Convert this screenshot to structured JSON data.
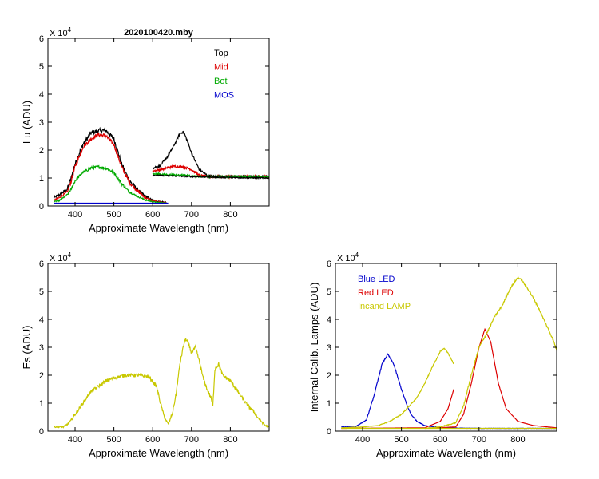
{
  "chart_data": [
    {
      "type": "line",
      "title": "2020100420.mby",
      "xlabel": "Approximate Wavelength (nm)",
      "ylabel": "Lu (ADU)",
      "exponent_label": "X 10",
      "exponent_power": "4",
      "xlim": [
        330,
        900
      ],
      "ylim": [
        0,
        6
      ],
      "xticks": [
        "400",
        "500",
        "600",
        "700",
        "800"
      ],
      "yticks": [
        "0",
        "1",
        "2",
        "3",
        "4",
        "5",
        "6"
      ],
      "legend": [
        "Top",
        "Mid",
        "Bot",
        "MOS"
      ],
      "series": [
        {
          "name": "Top",
          "color": "#000000",
          "noise": 0.08,
          "x": [
            345,
            360,
            380,
            390,
            400,
            420,
            440,
            460,
            480,
            500,
            520,
            540,
            560,
            580,
            600,
            620,
            635
          ],
          "y": [
            0.3,
            0.4,
            0.6,
            1.0,
            1.5,
            2.2,
            2.6,
            2.7,
            2.7,
            2.4,
            1.5,
            0.9,
            0.6,
            0.35,
            0.2,
            0.15,
            0.13
          ]
        },
        {
          "name": "Mid",
          "color": "#dd0000",
          "noise": 0.07,
          "x": [
            345,
            360,
            380,
            390,
            400,
            420,
            440,
            460,
            480,
            500,
            520,
            540,
            560,
            580,
            600,
            620,
            635
          ],
          "y": [
            0.2,
            0.3,
            0.5,
            0.9,
            1.4,
            2.1,
            2.4,
            2.55,
            2.5,
            2.2,
            1.4,
            0.85,
            0.55,
            0.3,
            0.18,
            0.14,
            0.12
          ]
        },
        {
          "name": "Bot",
          "color": "#00aa00",
          "noise": 0.05,
          "x": [
            345,
            360,
            380,
            390,
            400,
            420,
            440,
            460,
            480,
            500,
            520,
            540,
            560,
            580,
            600,
            620,
            635
          ],
          "y": [
            0.15,
            0.2,
            0.4,
            0.6,
            0.9,
            1.2,
            1.35,
            1.4,
            1.35,
            1.2,
            0.8,
            0.5,
            0.35,
            0.22,
            0.15,
            0.12,
            0.11
          ]
        },
        {
          "name": "MOS",
          "color": "#0000cc",
          "noise": 0.0,
          "x": [
            345,
            640
          ],
          "y": [
            0.1,
            0.1
          ]
        },
        {
          "name": "Top",
          "color": "#000000",
          "noise": 0.04,
          "x": [
            600,
            620,
            640,
            660,
            670,
            680,
            690,
            700,
            720,
            740,
            760,
            800,
            900
          ],
          "y": [
            1.35,
            1.45,
            1.8,
            2.3,
            2.6,
            2.65,
            2.3,
            1.9,
            1.3,
            1.1,
            1.05,
            1.05,
            1.05
          ]
        },
        {
          "name": "Mid",
          "color": "#dd0000",
          "noise": 0.04,
          "x": [
            600,
            620,
            640,
            660,
            680,
            700,
            720,
            740,
            800,
            900
          ],
          "y": [
            1.25,
            1.3,
            1.38,
            1.42,
            1.4,
            1.3,
            1.1,
            1.05,
            1.05,
            1.05
          ]
        },
        {
          "name": "Bot",
          "color": "#00aa00",
          "noise": 0.03,
          "x": [
            600,
            640,
            680,
            720,
            800,
            900
          ],
          "y": [
            1.15,
            1.12,
            1.1,
            1.05,
            1.05,
            1.05
          ]
        },
        {
          "name": "Top",
          "color": "#000000",
          "noise": 0.02,
          "x": [
            600,
            700,
            800,
            900
          ],
          "y": [
            1.1,
            1.05,
            1.02,
            1.0
          ]
        }
      ]
    },
    {
      "type": "line",
      "title": "",
      "xlabel": "Approximate Wavelength (nm)",
      "ylabel": "Es (ADU)",
      "exponent_label": "X 10",
      "exponent_power": "4",
      "xlim": [
        330,
        900
      ],
      "ylim": [
        0,
        6
      ],
      "xticks": [
        "400",
        "500",
        "600",
        "700",
        "800"
      ],
      "yticks": [
        "0",
        "1",
        "2",
        "3",
        "4",
        "5",
        "6"
      ],
      "legend": [],
      "series": [
        {
          "name": "Es",
          "color": "#c8c800",
          "noise": 0.06,
          "x": [
            345,
            370,
            385,
            400,
            420,
            440,
            460,
            480,
            500,
            530,
            560,
            590,
            610,
            620,
            630,
            640,
            650,
            660,
            670,
            680,
            685,
            690,
            700,
            710,
            720,
            730,
            740,
            750,
            755,
            760,
            770,
            780,
            800,
            820,
            840,
            860,
            870,
            880,
            890,
            900
          ],
          "y": [
            0.15,
            0.15,
            0.3,
            0.6,
            1.0,
            1.4,
            1.6,
            1.8,
            1.9,
            2.0,
            2.0,
            1.95,
            1.6,
            1.0,
            0.5,
            0.25,
            0.6,
            1.3,
            2.4,
            3.1,
            3.3,
            3.2,
            2.8,
            3.0,
            2.5,
            1.9,
            1.5,
            1.2,
            0.9,
            2.2,
            2.4,
            2.0,
            1.8,
            1.4,
            1.0,
            0.7,
            0.5,
            0.35,
            0.2,
            0.15
          ]
        }
      ]
    },
    {
      "type": "line",
      "title": "",
      "xlabel": "Approximate Wavelength (nm)",
      "ylabel": "Internal Calib. Lamps (ADU)",
      "exponent_label": "X 10",
      "exponent_power": "4",
      "xlim": [
        330,
        900
      ],
      "ylim": [
        0,
        6
      ],
      "xticks": [
        "400",
        "500",
        "600",
        "700",
        "800"
      ],
      "yticks": [
        "0",
        "1",
        "2",
        "3",
        "4",
        "5",
        "6"
      ],
      "legend": [
        "Blue LED",
        "Red LED",
        "Incand LAMP"
      ],
      "series": [
        {
          "name": "Blue LED",
          "color": "#0000cc",
          "noise": 0.02,
          "x": [
            345,
            380,
            410,
            430,
            450,
            465,
            480,
            500,
            515,
            525,
            540,
            560,
            600,
            700,
            800,
            900
          ],
          "y": [
            0.15,
            0.15,
            0.4,
            1.3,
            2.4,
            2.75,
            2.4,
            1.5,
            0.9,
            0.6,
            0.35,
            0.2,
            0.12,
            0.1,
            0.1,
            0.1
          ]
        },
        {
          "name": "Red LED",
          "color": "#dd0000",
          "noise": 0.0,
          "x": [
            345,
            560,
            600,
            620,
            635
          ],
          "y": [
            0.1,
            0.12,
            0.35,
            0.8,
            1.5
          ]
        },
        {
          "name": "Red LED",
          "color": "#dd0000",
          "noise": 0.0,
          "x": [
            560,
            640,
            660,
            680,
            700,
            715,
            730,
            750,
            770,
            800,
            840,
            900
          ],
          "y": [
            0.1,
            0.15,
            0.6,
            1.7,
            3.0,
            3.65,
            3.2,
            1.7,
            0.8,
            0.35,
            0.2,
            0.12
          ]
        },
        {
          "name": "Incand LAMP",
          "color": "#c8c800",
          "noise": 0.02,
          "x": [
            345,
            400,
            440,
            470,
            500,
            520,
            540,
            560,
            580,
            600,
            610,
            620,
            635
          ],
          "y": [
            0.12,
            0.15,
            0.2,
            0.35,
            0.6,
            0.9,
            1.2,
            1.7,
            2.3,
            2.85,
            2.95,
            2.8,
            2.4
          ]
        },
        {
          "name": "Incand LAMP",
          "color": "#c8c800",
          "noise": 0.03,
          "x": [
            560,
            600,
            640,
            660,
            680,
            700,
            720,
            740,
            760,
            780,
            800,
            810,
            830,
            850,
            870,
            890,
            900
          ],
          "y": [
            0.1,
            0.15,
            0.3,
            0.9,
            2.0,
            3.0,
            3.5,
            4.1,
            4.5,
            5.1,
            5.5,
            5.4,
            5.0,
            4.5,
            3.9,
            3.3,
            2.9
          ]
        },
        {
          "name": "Incand LAMP",
          "color": "#c8c800",
          "noise": 0.0,
          "x": [
            345,
            600,
            900
          ],
          "y": [
            0.1,
            0.1,
            0.1
          ]
        }
      ]
    }
  ]
}
